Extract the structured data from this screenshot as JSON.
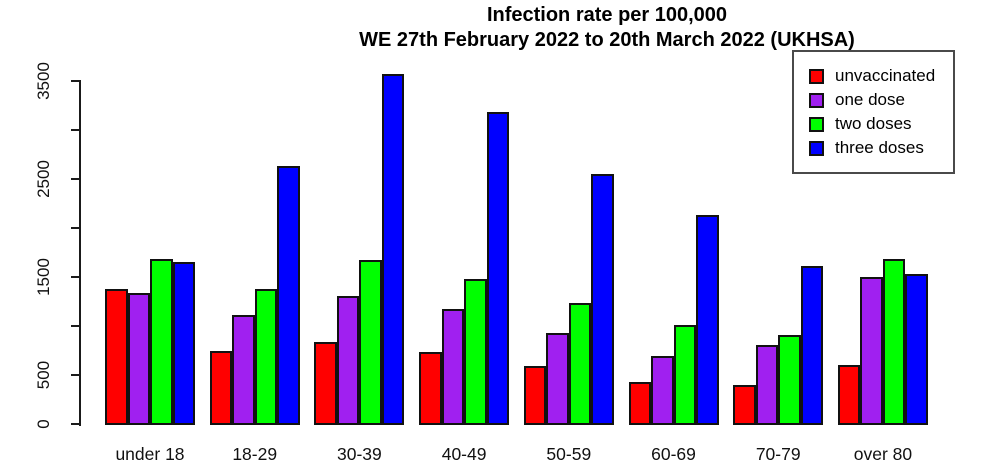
{
  "chart_data": {
    "type": "bar",
    "title": "Infection rate per 100,000",
    "subtitle": "WE 27th February 2022 to 20th March 2022 (UKHSA)",
    "categories": [
      "under 18",
      "18-29",
      "30-39",
      "40-49",
      "50-59",
      "60-69",
      "70-79",
      "over 80"
    ],
    "series": [
      {
        "name": "unvaccinated",
        "color": "#FF0000",
        "values": [
          1390,
          750,
          850,
          745,
          600,
          440,
          405,
          610
        ]
      },
      {
        "name": "one dose",
        "color": "#A020F0",
        "values": [
          1345,
          1125,
          1315,
          1185,
          940,
          705,
          815,
          1505
        ]
      },
      {
        "name": "two doses",
        "color": "#00FF00",
        "values": [
          1690,
          1390,
          1680,
          1490,
          1240,
          1020,
          915,
          1690
        ]
      },
      {
        "name": "three doses",
        "color": "#0000FF",
        "values": [
          1660,
          2645,
          3575,
          3195,
          2555,
          2145,
          1620,
          1540
        ]
      }
    ],
    "y_axis": {
      "min": 0,
      "max": 3500,
      "ticks": [
        {
          "value": 0,
          "label": "0"
        },
        {
          "value": 500,
          "label": "500"
        },
        {
          "value": 1000,
          "label": ""
        },
        {
          "value": 1500,
          "label": "1500"
        },
        {
          "value": 2000,
          "label": ""
        },
        {
          "value": 2500,
          "label": "2500"
        },
        {
          "value": 3000,
          "label": ""
        },
        {
          "value": 3500,
          "label": "3500"
        }
      ]
    },
    "legend": {
      "position": "top-right",
      "entries": [
        "unvaccinated",
        "one dose",
        "two doses",
        "three doses"
      ]
    },
    "grid": false,
    "xlabel": "",
    "ylabel": ""
  },
  "colors": {
    "background": "#FFFFFF",
    "axis": "#1A1A1A",
    "bar_border": "#111111",
    "legend_border": "#4A4A4A",
    "unvaccinated": "#FF0000",
    "one_dose": "#A020F0",
    "two_doses": "#00FF00",
    "three_doses": "#0000FF"
  }
}
